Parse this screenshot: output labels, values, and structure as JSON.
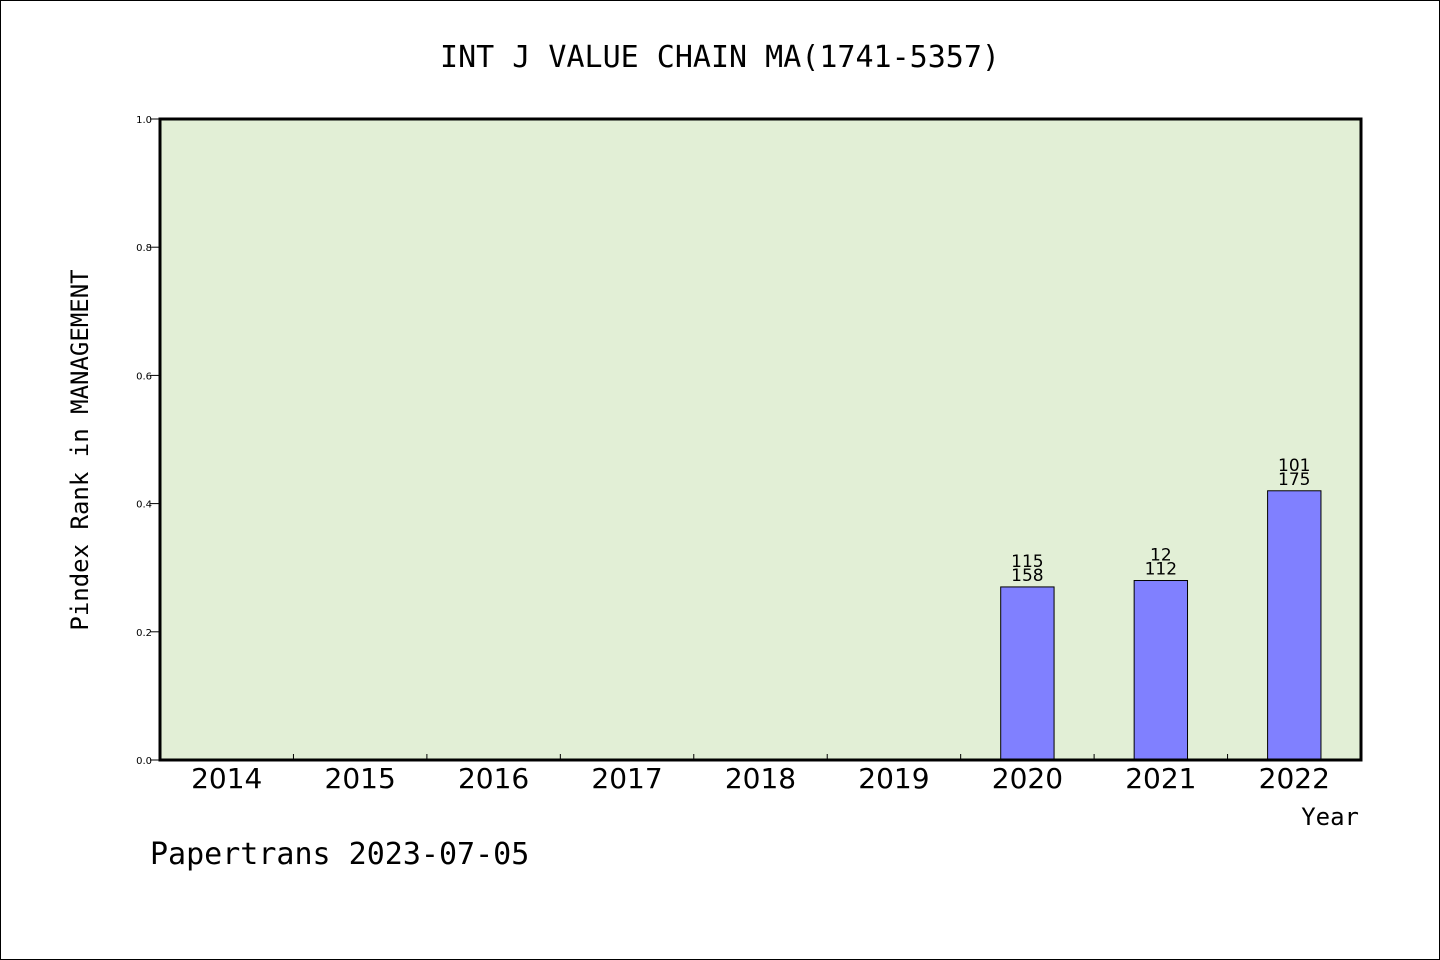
{
  "chart_data": {
    "type": "bar",
    "title": "INT J VALUE CHAIN MA(1741-5357)",
    "xlabel": "Year",
    "ylabel": "Pindex Rank in MANAGEMENT",
    "categories": [
      "2014",
      "2015",
      "2016",
      "2017",
      "2018",
      "2019",
      "2020",
      "2021",
      "2022"
    ],
    "values": [
      null,
      null,
      null,
      null,
      null,
      null,
      0.27,
      0.28,
      0.42
    ],
    "bar_labels": [
      null,
      null,
      null,
      null,
      null,
      null,
      {
        "top": "115",
        "bottom": "158"
      },
      {
        "top": "12",
        "bottom": "112"
      },
      {
        "top": "101",
        "bottom": "175"
      }
    ],
    "ylim": [
      0,
      1.0
    ],
    "yticks": [
      "0.0",
      "0.2",
      "0.4",
      "0.6",
      "0.8",
      "1.0"
    ],
    "grid": false,
    "colors": {
      "plot_background": "#e2efd6",
      "bar_fill": "#8080ff",
      "bar_stroke": "#000000"
    }
  },
  "footer": {
    "text": "Papertrans 2023-07-05"
  }
}
